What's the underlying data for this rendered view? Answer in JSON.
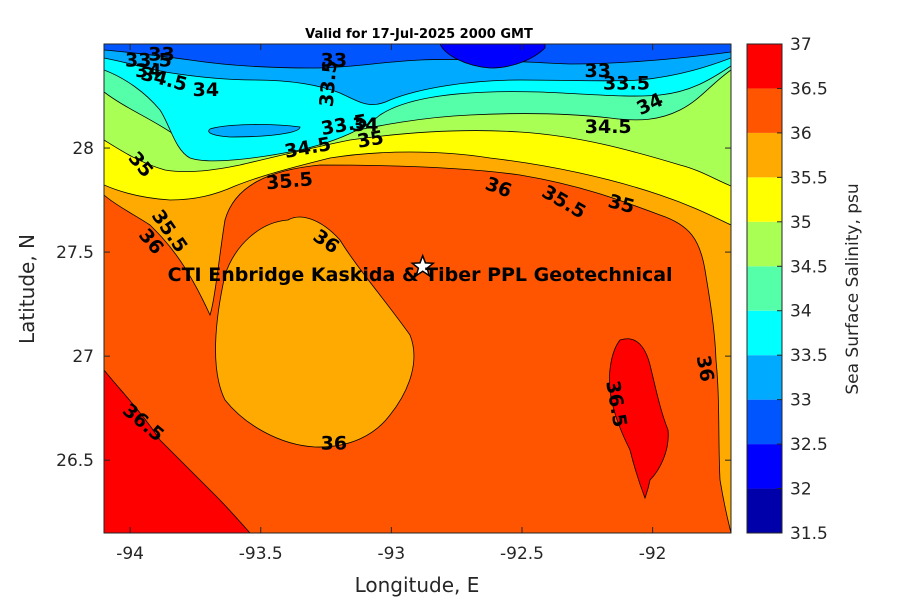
{
  "figure": {
    "title": "Valid for 17-Jul-2025 2000 GMT",
    "xlabel": "Longitude, E",
    "ylabel": "Latitude, N",
    "colorbar_label": "Sea Surface Salinity, psu",
    "annotation": "CTI Enbridge  Kaskida & Tiber PPL Geotechnical",
    "marker": "star-icon"
  },
  "chart_data": {
    "type": "heatmap",
    "subtype": "filled-contour",
    "title": "Valid for 17-Jul-2025 2000 GMT",
    "xlabel": "Longitude, E",
    "ylabel": "Latitude, N",
    "xlim": [
      -94.1,
      -91.7
    ],
    "ylim": [
      26.15,
      28.5
    ],
    "xticks": [
      -94,
      -93.5,
      -93,
      -92.5,
      -92
    ],
    "xtick_labels": [
      "-94",
      "-93.5",
      "-93",
      "-92.5",
      "-92"
    ],
    "yticks": [
      26.5,
      27,
      27.5,
      28
    ],
    "ytick_labels": [
      "26.5",
      "27",
      "27.5",
      "28"
    ],
    "colorbar": {
      "label": "Sea Surface Salinity, psu",
      "levels": [
        31.5,
        32,
        32.5,
        33,
        33.5,
        34,
        34.5,
        35,
        35.5,
        36,
        36.5,
        37
      ],
      "tick_labels": [
        "31.5",
        "32",
        "32.5",
        "33",
        "33.5",
        "34",
        "34.5",
        "35",
        "35.5",
        "36",
        "36.5",
        "37"
      ],
      "colors": [
        "#0000aa",
        "#0000ff",
        "#0055ff",
        "#00aaff",
        "#00ffff",
        "#55ffaa",
        "#aaff55",
        "#ffff00",
        "#ffaa00",
        "#ff5500",
        "#ff0000"
      ]
    },
    "contour_labels": [
      {
        "text": "33",
        "lon": -93.88,
        "lat": 28.45,
        "rot": 0
      },
      {
        "text": "33.5",
        "lon": -93.93,
        "lat": 28.42,
        "rot": 0
      },
      {
        "text": "34",
        "lon": -93.93,
        "lat": 28.37,
        "rot": 0
      },
      {
        "text": "34.5",
        "lon": -93.87,
        "lat": 28.33,
        "rot": 15
      },
      {
        "text": "34",
        "lon": -93.71,
        "lat": 28.28,
        "rot": 0
      },
      {
        "text": "33",
        "lon": -93.22,
        "lat": 28.42,
        "rot": 0
      },
      {
        "text": "33.5",
        "lon": -93.24,
        "lat": 28.31,
        "rot": -85
      },
      {
        "text": "33.5",
        "lon": -93.18,
        "lat": 28.11,
        "rot": -10
      },
      {
        "text": "34",
        "lon": -93.1,
        "lat": 28.11,
        "rot": 0
      },
      {
        "text": "34.5",
        "lon": -93.32,
        "lat": 28.0,
        "rot": -10
      },
      {
        "text": "35",
        "lon": -93.08,
        "lat": 28.04,
        "rot": -10
      },
      {
        "text": "35.5",
        "lon": -93.39,
        "lat": 27.84,
        "rot": -5
      },
      {
        "text": "35",
        "lon": -93.96,
        "lat": 27.92,
        "rot": 50
      },
      {
        "text": "35.5",
        "lon": -93.85,
        "lat": 27.6,
        "rot": 55
      },
      {
        "text": "36",
        "lon": -93.92,
        "lat": 27.55,
        "rot": 50
      },
      {
        "text": "36",
        "lon": -93.25,
        "lat": 27.55,
        "rot": 35
      },
      {
        "text": "36",
        "lon": -92.59,
        "lat": 27.81,
        "rot": 20
      },
      {
        "text": "35.5",
        "lon": -92.34,
        "lat": 27.74,
        "rot": 30
      },
      {
        "text": "35",
        "lon": -92.12,
        "lat": 27.73,
        "rot": 15
      },
      {
        "text": "33",
        "lon": -92.21,
        "lat": 28.37,
        "rot": 0
      },
      {
        "text": "33.5",
        "lon": -92.1,
        "lat": 28.31,
        "rot": 0
      },
      {
        "text": "34",
        "lon": -92.01,
        "lat": 28.21,
        "rot": -25
      },
      {
        "text": "34.5",
        "lon": -92.17,
        "lat": 28.1,
        "rot": 0
      },
      {
        "text": "36",
        "lon": -93.22,
        "lat": 26.58,
        "rot": 0
      },
      {
        "text": "36.5",
        "lon": -92.14,
        "lat": 26.77,
        "rot": 80
      },
      {
        "text": "36",
        "lon": -91.8,
        "lat": 26.94,
        "rot": 80
      },
      {
        "text": "36.5",
        "lon": -93.95,
        "lat": 26.68,
        "rot": 40
      }
    ],
    "marker": {
      "lon": -92.88,
      "lat": 27.43,
      "symbol": "star"
    },
    "annotation": {
      "text": "CTI Enbridge  Kaskida & Tiber PPL Geotechnical",
      "lon": -92.89,
      "lat": 27.36
    }
  }
}
